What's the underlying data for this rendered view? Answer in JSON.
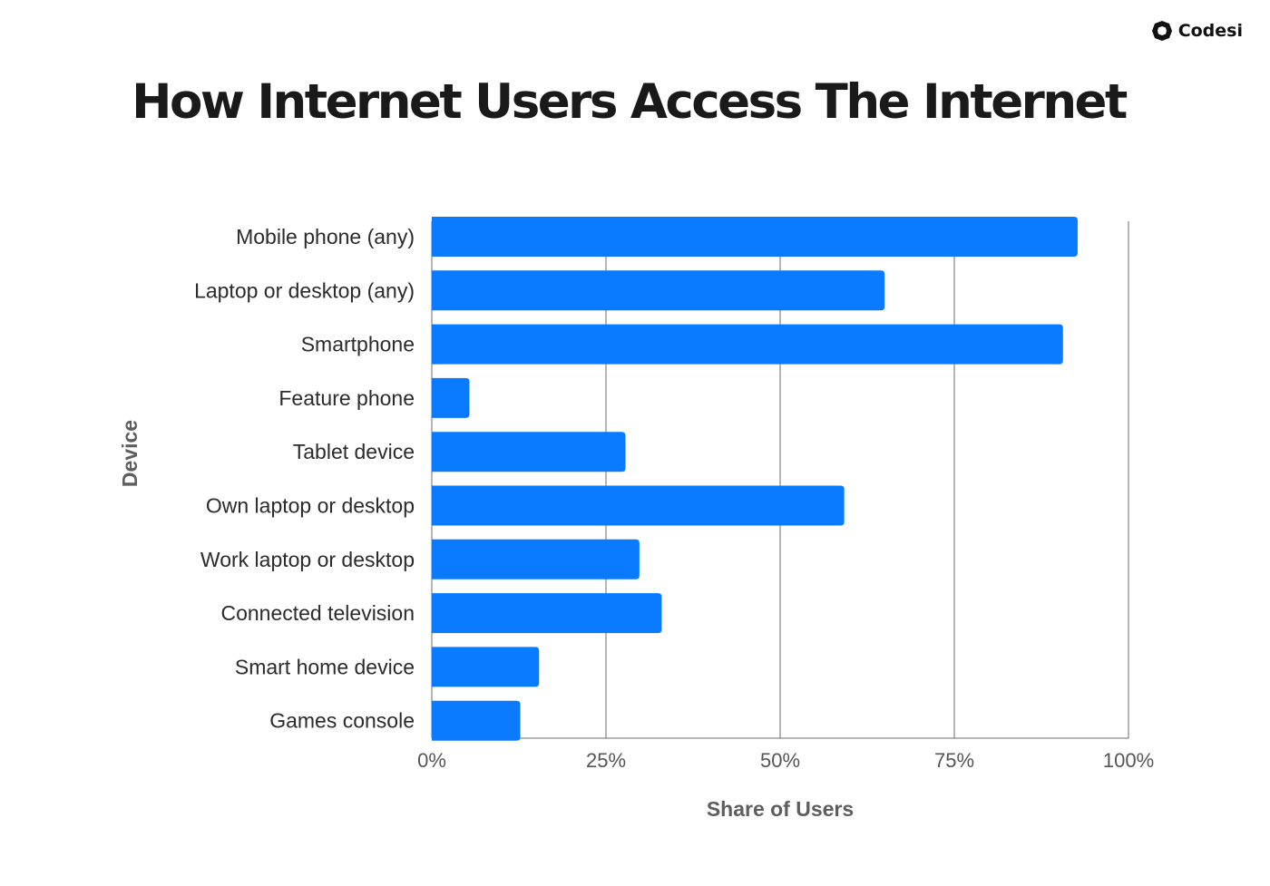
{
  "brand": {
    "name": "Codesi",
    "icon": "codesi-logo-icon"
  },
  "chart_data": {
    "type": "bar",
    "orientation": "horizontal",
    "title": "How Internet Users Access The Internet",
    "xlabel": "Share of Users",
    "ylabel": "Device",
    "xlim": [
      0,
      100
    ],
    "xticks": [
      "0%",
      "25%",
      "50%",
      "75%",
      "100%"
    ],
    "grid": true,
    "bar_color": "#0A7AFF",
    "categories": [
      "Mobile phone (any)",
      "Laptop or desktop (any)",
      "Smartphone",
      "Feature phone",
      "Tablet device",
      "Own laptop or desktop",
      "Work laptop or desktop",
      "Connected television",
      "Smart home device",
      "Games console"
    ],
    "values": [
      92.7,
      65.0,
      90.6,
      5.4,
      27.8,
      59.2,
      29.8,
      33.0,
      15.4,
      12.7
    ]
  }
}
